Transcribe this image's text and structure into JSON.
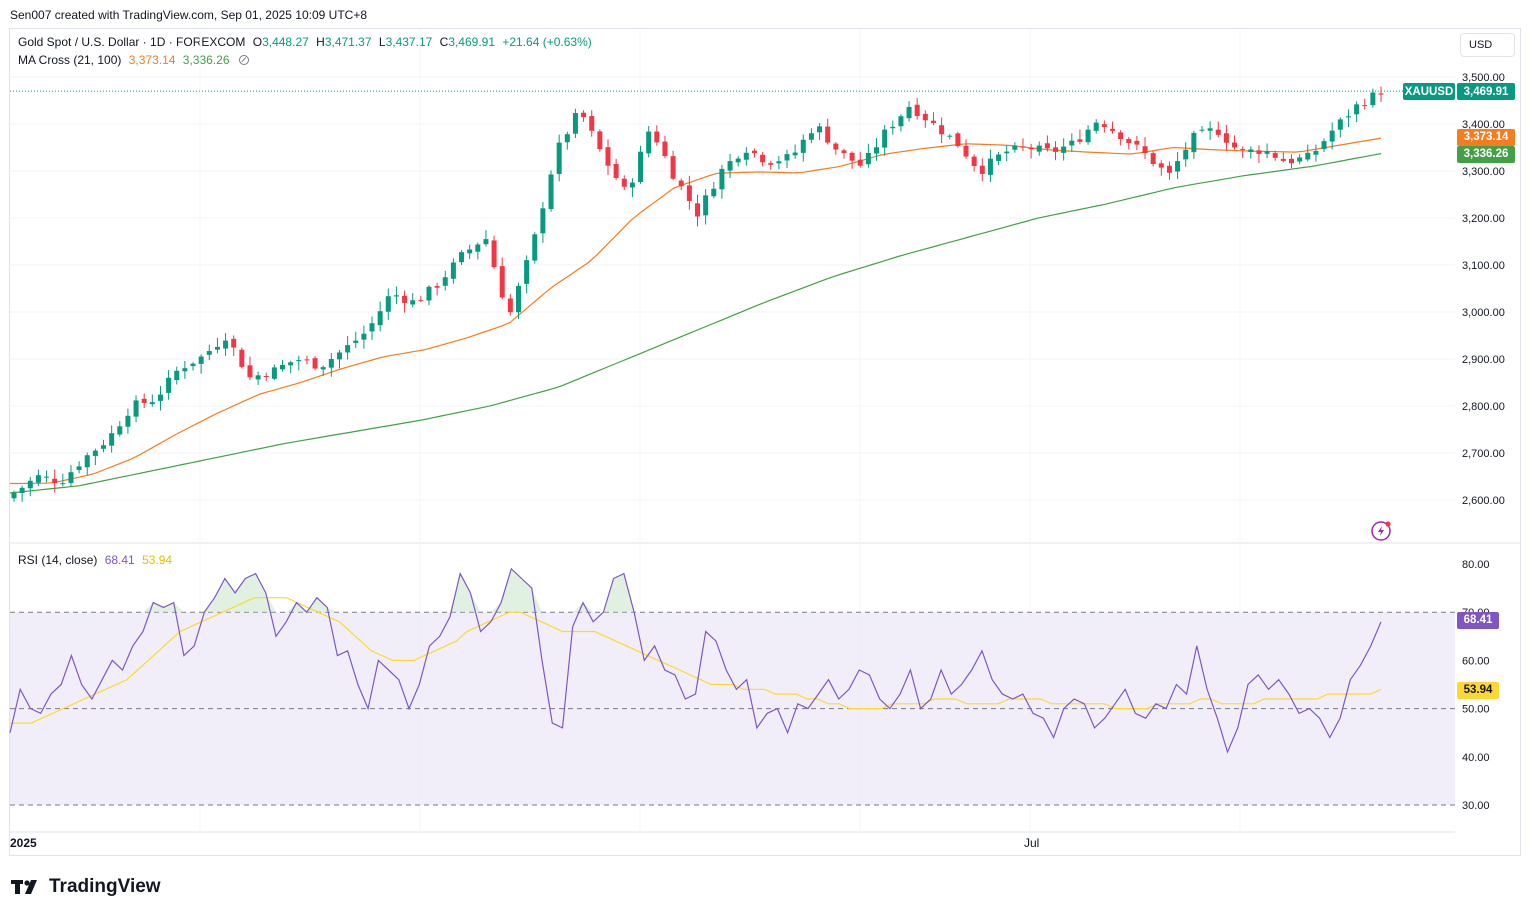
{
  "header": {
    "credit": "Sen007 created with TradingView.com, Sep 01, 2025 10:09 UTC+8"
  },
  "ohlc": {
    "symbol_desc": "Gold Spot / U.S. Dollar · 1D · FOREXCOM",
    "o_label": "O",
    "o": "3,448.27",
    "h_label": "H",
    "h": "3,471.37",
    "l_label": "L",
    "l": "3,437.17",
    "c_label": "C",
    "c": "3,469.91",
    "change": "+21.64 (+0.63%)"
  },
  "ma_legend": {
    "name": "MA Cross (21, 100)",
    "fast": "3,373.14",
    "slow": "3,336.26",
    "icon": "eye-crossed-icon"
  },
  "rsi_legend": {
    "name": "RSI (14, close)",
    "rsi": "68.41",
    "ma": "53.94"
  },
  "currency_button": "USD",
  "price_tags": {
    "symbol": "XAUUSD",
    "last": "3,469.91",
    "ma_fast": "3,373.14",
    "ma_slow": "3,336.26",
    "rsi": "68.41",
    "rsi_ma": "53.94"
  },
  "colors": {
    "up": "#089981",
    "down": "#f23645",
    "ma_fast": "#f57c1f",
    "ma_slow": "#43a047",
    "rsi": "#7e57c2",
    "rsi_ma": "#fdd835",
    "rsi_band": "#ede7f6"
  },
  "brand": {
    "name": "TradingView",
    "icon": "tradingview-logo-icon"
  },
  "chart_data": {
    "type": "candlestick",
    "price_axis": {
      "ticks": [
        "3,500.00",
        "3,400.00",
        "3,300.00",
        "3,200.00",
        "3,100.00",
        "3,000.00",
        "2,900.00",
        "2,800.00",
        "2,700.00",
        "2,600.00"
      ],
      "range": [
        2560,
        3520
      ]
    },
    "time_axis": {
      "labels": [
        "2025",
        "Jul"
      ]
    },
    "last_price": 3469.91,
    "anchors": [
      2615,
      2650,
      2640,
      2690,
      2730,
      2800,
      2815,
      2880,
      2905,
      2950,
      2860,
      2875,
      2900,
      2885,
      2920,
      2960,
      3040,
      3020,
      3060,
      3120,
      3160,
      2990,
      3140,
      3340,
      3430,
      3330,
      3250,
      3395,
      3290,
      3210,
      3300,
      3350,
      3320,
      3330,
      3400,
      3340,
      3310,
      3385,
      3440,
      3400,
      3360,
      3300,
      3340,
      3350,
      3340,
      3360,
      3410,
      3375,
      3335,
      3290,
      3370,
      3390,
      3340,
      3345,
      3320,
      3330,
      3390,
      3440,
      3470
    ],
    "ma_fast": {
      "name": "MA 21",
      "anchors": [
        2635,
        2636,
        2655,
        2690,
        2740,
        2785,
        2825,
        2850,
        2880,
        2905,
        2920,
        2945,
        2975,
        3050,
        3110,
        3200,
        3265,
        3295,
        3298,
        3296,
        3310,
        3335,
        3348,
        3358,
        3355,
        3345,
        3340,
        3336,
        3350,
        3345,
        3342,
        3340,
        3355,
        3370
      ]
    },
    "ma_slow": {
      "name": "MA 100",
      "anchors": [
        2615,
        2630,
        2660,
        2690,
        2720,
        2745,
        2770,
        2800,
        2840,
        2900,
        2960,
        3020,
        3075,
        3120,
        3160,
        3200,
        3230,
        3265,
        3290,
        3310,
        3337
      ]
    },
    "rsi": {
      "axis": {
        "ticks": [
          "80.00",
          "70.00",
          "60.00",
          "50.00",
          "40.00",
          "30.00"
        ],
        "range": [
          25,
          85
        ],
        "overbought": 70,
        "oversold": 30,
        "mid": 50
      },
      "values": [
        45,
        54,
        50,
        49,
        53,
        55,
        61,
        55,
        52,
        56,
        60,
        58,
        63,
        66,
        72,
        71,
        72,
        61,
        63,
        70,
        73,
        77,
        74,
        77,
        78,
        74,
        65,
        68,
        72,
        70,
        73,
        71,
        61,
        62,
        55,
        50,
        60,
        58,
        56,
        50,
        55,
        63,
        65,
        69,
        78,
        74,
        66,
        68,
        72,
        79,
        77,
        75,
        60,
        47,
        46,
        67,
        72,
        68,
        70,
        77,
        78,
        70,
        60,
        63,
        58,
        57,
        52,
        53,
        66,
        64,
        58,
        54,
        56,
        46,
        49,
        50,
        45,
        51,
        50,
        53,
        56,
        52,
        54,
        58,
        57,
        52,
        50,
        53,
        58,
        50,
        52,
        58,
        53,
        55,
        58,
        62,
        56,
        53,
        52,
        53,
        49,
        48,
        44,
        50,
        52,
        51,
        46,
        48,
        51,
        54,
        49,
        48,
        51,
        50,
        55,
        53,
        63,
        54,
        48,
        41,
        46,
        55,
        57,
        54,
        56,
        53,
        49,
        50,
        48,
        44,
        48,
        56,
        59,
        63,
        68
      ],
      "ma_values": [
        47,
        47,
        47,
        48,
        49,
        50,
        51,
        52,
        53,
        54,
        55,
        56,
        58,
        60,
        62,
        64,
        66,
        67,
        68,
        69,
        70,
        71,
        72,
        73,
        73,
        73,
        73,
        72,
        71,
        70,
        69,
        68,
        66,
        64,
        62,
        61,
        60,
        60,
        60,
        61,
        62,
        63,
        64,
        66,
        67,
        68,
        69,
        70,
        70,
        69,
        68,
        67,
        66,
        66,
        66,
        66,
        65,
        64,
        63,
        62,
        61,
        60,
        59,
        58,
        57,
        56,
        55,
        55,
        55,
        54,
        54,
        54,
        53,
        53,
        53,
        52,
        52,
        51,
        51,
        50,
        50,
        50,
        50,
        51,
        51,
        51,
        51,
        52,
        52,
        52,
        51,
        51,
        51,
        51,
        52,
        52,
        52,
        52,
        51,
        51,
        51,
        51,
        51,
        51,
        50,
        50,
        50,
        50,
        51,
        51,
        51,
        51,
        52,
        52,
        51,
        51,
        51,
        51,
        52,
        52,
        52,
        52,
        52,
        52,
        53,
        53,
        53,
        53,
        53,
        54
      ]
    }
  }
}
